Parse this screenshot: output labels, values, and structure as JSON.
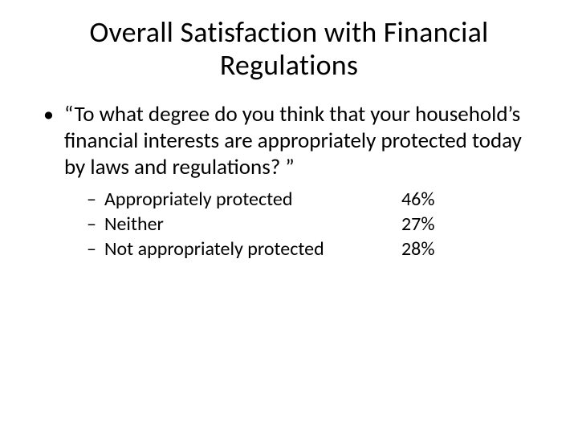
{
  "title": "Overall Satisfaction with Financial Regulations",
  "question": "“To what degree do you think that your household’s financial interests are appropriately protected today by laws and regulations? ”",
  "responses": [
    {
      "label": "Appropriately protected",
      "value": "46%"
    },
    {
      "label": "Neither",
      "value": "27%"
    },
    {
      "label": "Not appropriately protected",
      "value": "28%"
    }
  ],
  "style": {
    "background_color": "#ffffff",
    "text_color": "#000000",
    "title_fontsize": 36,
    "body_fontsize": 27,
    "sub_fontsize": 24,
    "font_family": "Calibri"
  }
}
